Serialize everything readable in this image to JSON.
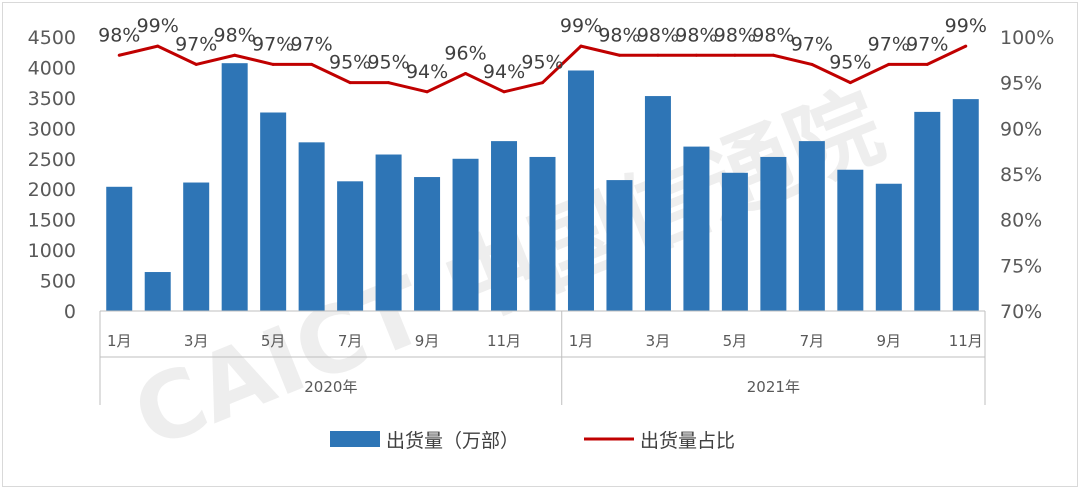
{
  "colors": {
    "bar": "#2e75b6",
    "line": "#c00000",
    "axis_text": "#595959",
    "label_text": "#404040",
    "axis_line": "#bfbfbf",
    "watermark": "#d9d9d9"
  },
  "watermark": "CAICT 中国信通院",
  "chart_data": {
    "type": "bar",
    "title": "",
    "xlabel": "",
    "ylabel": "",
    "ylim": [
      0,
      4500
    ],
    "y2lim": [
      0.7,
      1.0
    ],
    "y_ticks": [
      "0",
      "500",
      "1000",
      "1500",
      "2000",
      "2500",
      "3000",
      "3500",
      "4000",
      "4500"
    ],
    "y2_ticks": [
      "70%",
      "75%",
      "80%",
      "85%",
      "90%",
      "95%",
      "100%"
    ],
    "x_tick_labels": [
      "1月",
      "",
      "3月",
      "",
      "5月",
      "",
      "7月",
      "",
      "9月",
      "",
      "11月",
      "",
      "1月",
      "",
      "3月",
      "",
      "5月",
      "",
      "7月",
      "",
      "9月",
      "",
      "11月"
    ],
    "groups": [
      {
        "label": "2020年",
        "count": 12
      },
      {
        "label": "2021年",
        "count": 11
      }
    ],
    "legend_position": "bottom",
    "series": [
      {
        "name": "出货量（万部）",
        "type": "bar",
        "axis": "left",
        "values": [
          2040,
          640,
          2110,
          4070,
          3260,
          2770,
          2130,
          2570,
          2200,
          2500,
          2790,
          2530,
          3950,
          2150,
          3530,
          2700,
          2270,
          2530,
          2790,
          2320,
          2090,
          3270,
          3480
        ]
      },
      {
        "name": "出货量占比",
        "type": "line",
        "axis": "right",
        "values": [
          0.98,
          0.99,
          0.97,
          0.98,
          0.97,
          0.97,
          0.95,
          0.95,
          0.94,
          0.96,
          0.94,
          0.95,
          0.99,
          0.98,
          0.98,
          0.98,
          0.98,
          0.98,
          0.97,
          0.95,
          0.97,
          0.97,
          0.99
        ],
        "data_labels": [
          "98%",
          "99%",
          "97%",
          "98%",
          "97%",
          "97%",
          "95%",
          "95%",
          "94%",
          "96%",
          "94%",
          "95%",
          "99%",
          "98%",
          "98%",
          "98%",
          "98%",
          "98%",
          "97%",
          "95%",
          "97%",
          "97%",
          "99%"
        ]
      }
    ]
  }
}
